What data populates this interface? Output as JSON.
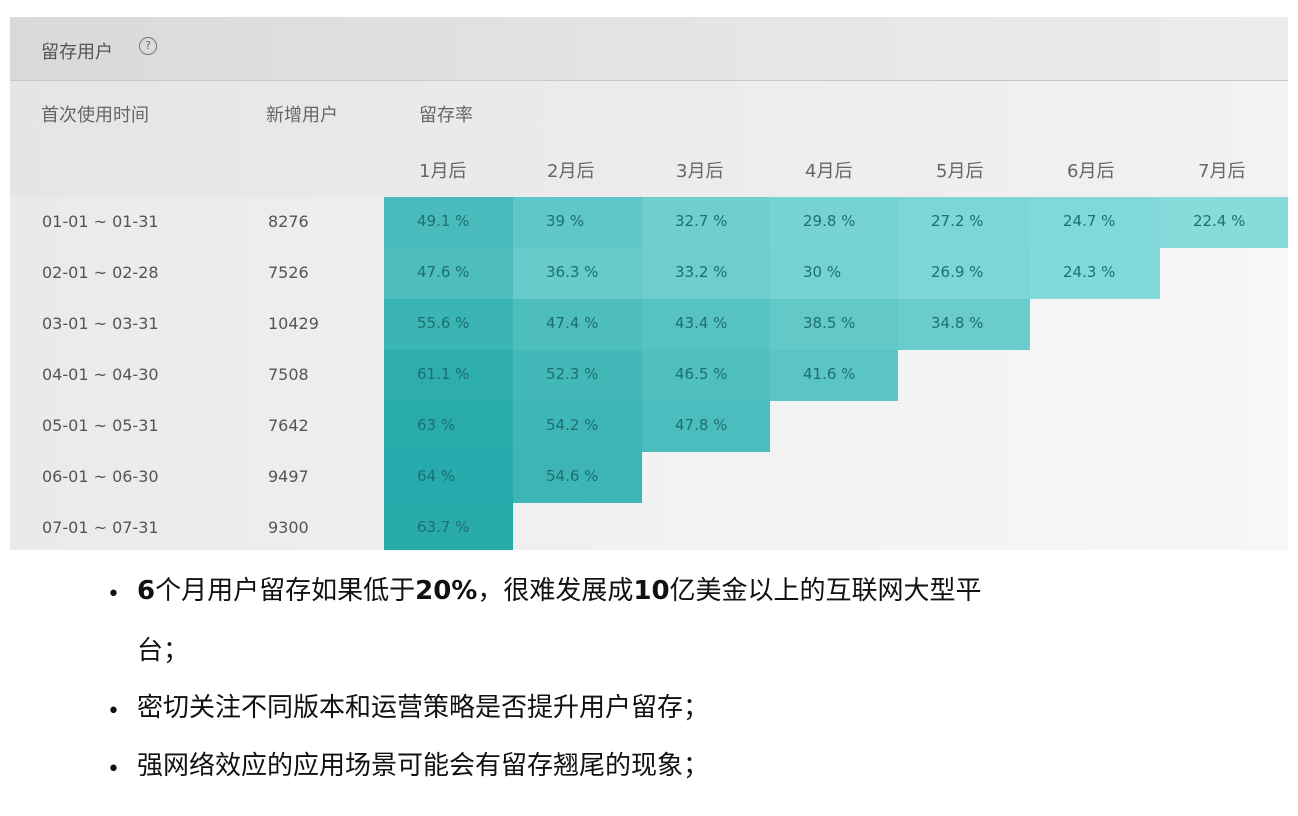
{
  "panel": {
    "title": "留存用户",
    "help_icon": "question-circle-icon"
  },
  "table": {
    "col_first_use": "首次使用时间",
    "col_new_users": "新增用户",
    "col_retention": "留存率",
    "month_headers": [
      "1月后",
      "2月后",
      "3月后",
      "4月后",
      "5月后",
      "6月后",
      "7月后"
    ],
    "rows": [
      {
        "range": "01-01 ~ 01-31",
        "new_users": "8276",
        "rates": [
          "49.1 %",
          "39 %",
          "32.7 %",
          "29.8 %",
          "27.2 %",
          "24.7 %",
          "22.4 %"
        ],
        "rate_values": [
          49.1,
          39,
          32.7,
          29.8,
          27.2,
          24.7,
          22.4
        ]
      },
      {
        "range": "02-01 ~ 02-28",
        "new_users": "7526",
        "rates": [
          "47.6 %",
          "36.3 %",
          "33.2 %",
          "30 %",
          "26.9 %",
          "24.3 %"
        ],
        "rate_values": [
          47.6,
          36.3,
          33.2,
          30,
          26.9,
          24.3
        ]
      },
      {
        "range": "03-01 ~ 03-31",
        "new_users": "10429",
        "rates": [
          "55.6 %",
          "47.4 %",
          "43.4 %",
          "38.5 %",
          "34.8 %"
        ],
        "rate_values": [
          55.6,
          47.4,
          43.4,
          38.5,
          34.8
        ]
      },
      {
        "range": "04-01 ~ 04-30",
        "new_users": "7508",
        "rates": [
          "61.1 %",
          "52.3 %",
          "46.5 %",
          "41.6 %"
        ],
        "rate_values": [
          61.1,
          52.3,
          46.5,
          41.6
        ]
      },
      {
        "range": "05-01 ~ 05-31",
        "new_users": "7642",
        "rates": [
          "63 %",
          "54.2 %",
          "47.8 %"
        ],
        "rate_values": [
          63,
          54.2,
          47.8
        ]
      },
      {
        "range": "06-01 ~ 06-30",
        "new_users": "9497",
        "rates": [
          "64 %",
          "54.6 %"
        ],
        "rate_values": [
          64,
          54.6
        ]
      },
      {
        "range": "07-01 ~ 07-31",
        "new_users": "9300",
        "rates": [
          "63.7 %"
        ],
        "rate_values": [
          63.7
        ]
      }
    ],
    "heat_color": "#2ab3b4"
  },
  "bullets": {
    "b1": {
      "p1": "6",
      "p2": "个月用户留存如果低于",
      "p3": "20%",
      "p4": "，很难发展成",
      "p5": "10",
      "p6": "亿美金以上的互联网大型平台；"
    },
    "b2": "密切关注不同版本和运营策略是否提升用户留存；",
    "b3": "强网络效应的应用场景可能会有留存翘尾的现象；"
  }
}
